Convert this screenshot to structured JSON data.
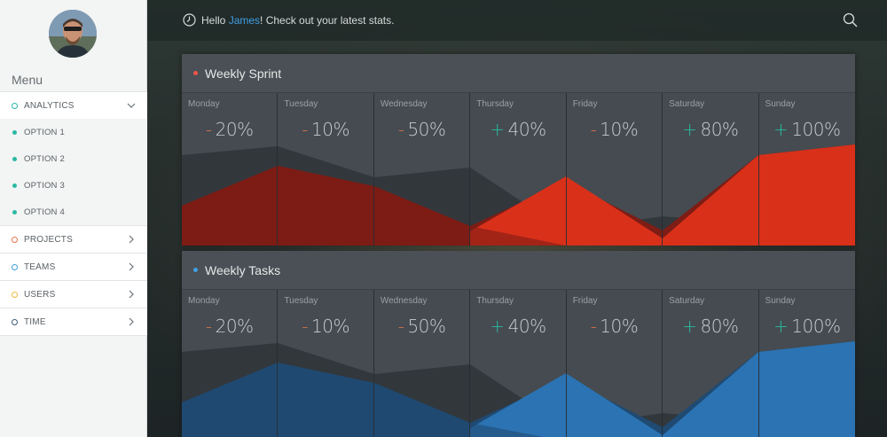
{
  "sidebar": {
    "menu_title": "Menu",
    "items": [
      {
        "label": "ANALYTICS",
        "ring_color": "#2ab9a3",
        "expanded": true
      },
      {
        "label": "PROJECTS",
        "ring_color": "#e8744f",
        "expanded": false
      },
      {
        "label": "TEAMS",
        "ring_color": "#3f9fe4",
        "expanded": false
      },
      {
        "label": "USERS",
        "ring_color": "#f0b93a",
        "expanded": false
      },
      {
        "label": "TIME",
        "ring_color": "#3d5a78",
        "expanded": false
      }
    ],
    "sub_items": [
      {
        "label": "OPTION 1"
      },
      {
        "label": "OPTION 2"
      },
      {
        "label": "OPTION 3"
      },
      {
        "label": "OPTION 4"
      }
    ]
  },
  "topbar": {
    "greeting_prefix": "Hello ",
    "user_name": "James",
    "greeting_suffix": "! Check out your latest stats.",
    "clock_icon": "clock-icon",
    "search_icon": "search-icon"
  },
  "panels": [
    {
      "title": "Weekly Sprint",
      "accent": "#d9301a",
      "dot_color": "#f0554a",
      "dark_fill": "#7d1d15",
      "days": [
        {
          "name": "Monday",
          "sign": "-",
          "value": "20%"
        },
        {
          "name": "Tuesday",
          "sign": "-",
          "value": "10%"
        },
        {
          "name": "Wednesday",
          "sign": "-",
          "value": "50%"
        },
        {
          "name": "Thursday",
          "sign": "+",
          "value": "40%"
        },
        {
          "name": "Friday",
          "sign": "-",
          "value": "10%"
        },
        {
          "name": "Saturday",
          "sign": "+",
          "value": "80%"
        },
        {
          "name": "Sunday",
          "sign": "+",
          "value": "100%"
        }
      ]
    },
    {
      "title": "Weekly Tasks",
      "accent": "#2b73b3",
      "dot_color": "#3f9fe4",
      "dark_fill": "#1f4a72",
      "days": [
        {
          "name": "Monday",
          "sign": "-",
          "value": "20%"
        },
        {
          "name": "Tuesday",
          "sign": "-",
          "value": "10%"
        },
        {
          "name": "Wednesday",
          "sign": "-",
          "value": "50%"
        },
        {
          "name": "Thursday",
          "sign": "+",
          "value": "40%"
        },
        {
          "name": "Friday",
          "sign": "-",
          "value": "10%"
        },
        {
          "name": "Saturday",
          "sign": "+",
          "value": "80%"
        },
        {
          "name": "Sunday",
          "sign": "+",
          "value": "100%"
        }
      ]
    }
  ],
  "colors": {
    "sign_minus": "#e8744f",
    "sign_plus": "#2ab9a3"
  }
}
